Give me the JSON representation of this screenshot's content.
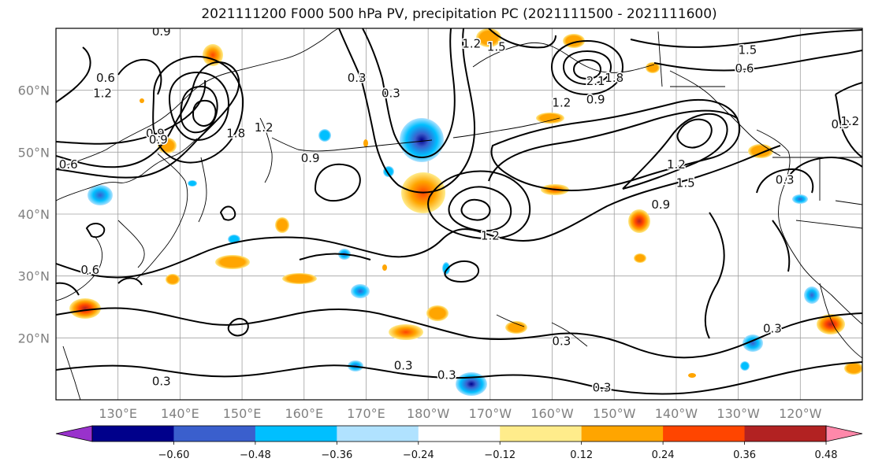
{
  "chart_data": {
    "type": "heatmap",
    "title": "2021111200 F000 500 hPa PV, precipitation PC (2021111500 - 2021111600)",
    "map_extent": {
      "lon_min": 120,
      "lon_max": 250,
      "lat_min": 10,
      "lat_max": 70
    },
    "lat_ticks": [
      {
        "value": 60,
        "label": "60°N"
      },
      {
        "value": 50,
        "label": "50°N"
      },
      {
        "value": 40,
        "label": "40°N"
      },
      {
        "value": 30,
        "label": "30°N"
      },
      {
        "value": 20,
        "label": "20°N"
      }
    ],
    "lon_ticks": [
      {
        "value": 130,
        "label": "130°E"
      },
      {
        "value": 140,
        "label": "140°E"
      },
      {
        "value": 150,
        "label": "150°E"
      },
      {
        "value": 160,
        "label": "160°E"
      },
      {
        "value": 170,
        "label": "170°E"
      },
      {
        "value": 180,
        "label": "180°W"
      },
      {
        "value": 190,
        "label": "170°W"
      },
      {
        "value": 200,
        "label": "160°W"
      },
      {
        "value": 210,
        "label": "150°W"
      },
      {
        "value": 220,
        "label": "140°W"
      },
      {
        "value": 230,
        "label": "130°W"
      },
      {
        "value": 240,
        "label": "120°W"
      }
    ],
    "colorbar": {
      "levels": [
        -0.6,
        -0.48,
        -0.36,
        -0.24,
        -0.12,
        0.12,
        0.24,
        0.36,
        0.48,
        0.6
      ],
      "tick_labels": [
        "−0.60",
        "−0.48",
        "−0.36",
        "−0.24",
        "−0.12",
        "0.12",
        "0.24",
        "0.36",
        "0.48",
        "0.60"
      ],
      "colors": [
        "#9932cc",
        "#00008b",
        "#3a5fcd",
        "#00bfff",
        "#b0e2ff",
        "#ffffff",
        "#ffec8b",
        "#ffa500",
        "#ff4500",
        "#b22222",
        "#ff88aa"
      ],
      "extend": "both"
    },
    "pv_contour_labels": [
      {
        "text": "0.3",
        "lon": 168.5,
        "lat": 62
      },
      {
        "text": "0.3",
        "lon": 174,
        "lat": 59.5
      },
      {
        "text": "0.3",
        "lon": 137,
        "lat": 13
      },
      {
        "text": "0.3",
        "lon": 176,
        "lat": 15.5
      },
      {
        "text": "0.3",
        "lon": 183,
        "lat": 14
      },
      {
        "text": "0.3",
        "lon": 201.5,
        "lat": 19.5
      },
      {
        "text": "0.3",
        "lon": 208,
        "lat": 12
      },
      {
        "text": "0.3",
        "lon": 235.5,
        "lat": 21.5
      },
      {
        "text": "0.3",
        "lon": 237.5,
        "lat": 45.5
      },
      {
        "text": "0.6",
        "lon": 128,
        "lat": 62
      },
      {
        "text": "0.6",
        "lon": 125.5,
        "lat": 31
      },
      {
        "text": "0.6",
        "lon": 122,
        "lat": 48
      },
      {
        "text": "0.6",
        "lon": 231,
        "lat": 63.5
      },
      {
        "text": "0.9",
        "lon": 136,
        "lat": 53
      },
      {
        "text": "0.9",
        "lon": 136.5,
        "lat": 52
      },
      {
        "text": "0.9",
        "lon": 161,
        "lat": 49
      },
      {
        "text": "0.9",
        "lon": 207,
        "lat": 58.5
      },
      {
        "text": "0.9",
        "lon": 217.5,
        "lat": 41.5
      },
      {
        "text": "0.9",
        "lon": 137,
        "lat": 69.5
      },
      {
        "text": "0.9",
        "lon": 246.5,
        "lat": 54.5
      },
      {
        "text": "1.2",
        "lon": 127.5,
        "lat": 59.5
      },
      {
        "text": "1.2",
        "lon": 153.5,
        "lat": 54
      },
      {
        "text": "1.2",
        "lon": 190,
        "lat": 36.5
      },
      {
        "text": "1.2",
        "lon": 201.5,
        "lat": 58
      },
      {
        "text": "1.2",
        "lon": 220,
        "lat": 48
      },
      {
        "text": "1.2",
        "lon": 187,
        "lat": 67.5
      },
      {
        "text": "1.2",
        "lon": 248,
        "lat": 55
      },
      {
        "text": "1.5",
        "lon": 191,
        "lat": 67
      },
      {
        "text": "1.5",
        "lon": 221.5,
        "lat": 45
      },
      {
        "text": "1.5",
        "lon": 231.5,
        "lat": 66.5
      },
      {
        "text": "1.8",
        "lon": 149,
        "lat": 53
      },
      {
        "text": "1.8",
        "lon": 210,
        "lat": 62
      },
      {
        "text": "2.1",
        "lon": 207,
        "lat": 61.5
      }
    ]
  }
}
